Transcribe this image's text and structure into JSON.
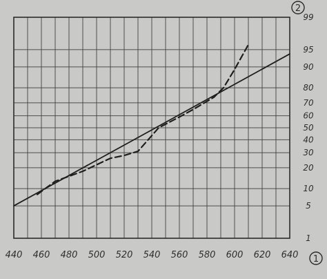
{
  "chart_data": {
    "type": "line",
    "title": "",
    "xlabel": "",
    "ylabel": "",
    "y_scale": "probability",
    "x_ticks": [
      440,
      460,
      480,
      500,
      520,
      540,
      560,
      580,
      600,
      620,
      640
    ],
    "y_ticks": [
      1,
      5,
      10,
      20,
      30,
      40,
      50,
      60,
      70,
      80,
      90,
      95,
      99
    ],
    "xlim": [
      440,
      640
    ],
    "ylim": [
      1,
      99
    ],
    "corner_marks": {
      "y_axis": "2",
      "x_axis": "1"
    },
    "grid": true,
    "series": [
      {
        "style": "solid",
        "x": [
          440,
          640
        ],
        "y": [
          5,
          94
        ]
      },
      {
        "style": "dashed",
        "x": [
          457,
          470,
          490,
          510,
          520,
          530,
          545,
          560,
          570,
          585,
          592,
          600,
          610
        ],
        "y": [
          8,
          13,
          18,
          26,
          28,
          31,
          50,
          59,
          65,
          74,
          80,
          89,
          96
        ]
      }
    ]
  }
}
